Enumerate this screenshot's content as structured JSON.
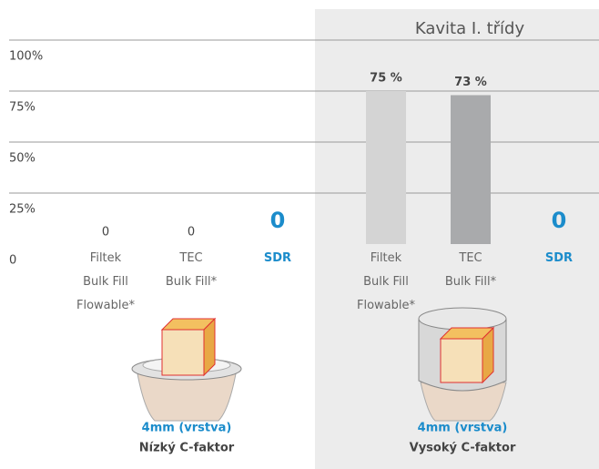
{
  "chart_data": {
    "type": "bar",
    "categories": [
      "Filtek\nBulk Fill\nFlowable*",
      "TEC\nBulk Fill*",
      "SDR"
    ],
    "category_colors": [
      "#666666",
      "#666666",
      "#1b8ccb"
    ],
    "bar_colors": [
      "#d4d4d4",
      "#a9aaac",
      "#1b8ccb"
    ],
    "ylim": [
      0,
      100
    ],
    "yticks": [
      0,
      {
        "value": 25,
        "label": "25%"
      },
      {
        "value": 50,
        "label": "50%"
      },
      {
        "value": 75,
        "label": "75%"
      },
      {
        "value": 100,
        "label": "100%"
      }
    ],
    "grid": true,
    "series": [
      {
        "name": "Nízký C-faktor",
        "caption": "4mm (vrstva)",
        "values": [
          0,
          0,
          0
        ]
      },
      {
        "name": "Vysoký C-faktor",
        "caption": "4mm (vrstva)",
        "title": "Kavita I. třídy",
        "values": [
          75,
          73,
          0
        ],
        "value_labels": [
          "75 %",
          "73 %",
          "0"
        ]
      }
    ]
  }
}
